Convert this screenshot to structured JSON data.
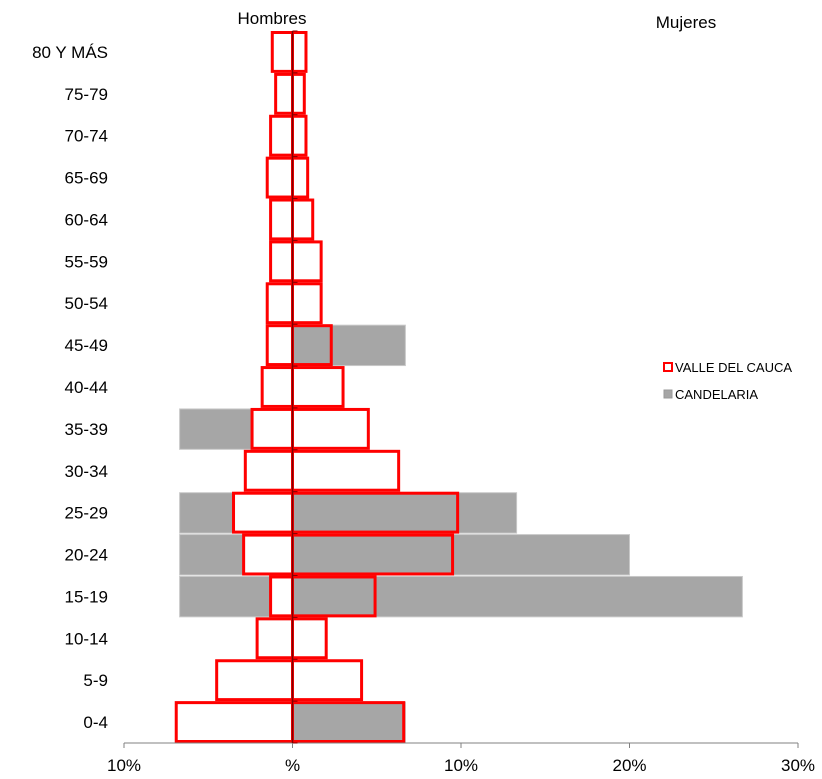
{
  "chart_data": {
    "type": "bar",
    "orientation": "horizontal",
    "subtype": "population-pyramid",
    "header_left": "Hombres",
    "header_right": "Mujeres",
    "categories": [
      "0-4",
      "5-9",
      "10-14",
      "15-19",
      "20-24",
      "25-29",
      "30-34",
      "35-39",
      "40-44",
      "45-49",
      "50-54",
      "55-59",
      "60-64",
      "65-69",
      "70-74",
      "75-79",
      "80 Y MÁS"
    ],
    "x_tick_labels": [
      {
        "value": -10,
        "label": "10%",
        "color": "#ff0000"
      },
      {
        "value": 0,
        "label": "%",
        "color": "#000000"
      },
      {
        "value": 10,
        "label": "10%",
        "color": "#000000"
      },
      {
        "value": 20,
        "label": "20%",
        "color": "#000000"
      },
      {
        "value": 30,
        "label": "30%",
        "color": "#000000"
      }
    ],
    "xlim": [
      -10,
      30
    ],
    "grid": false,
    "legend_position": "right",
    "series": [
      {
        "name": "CANDELARIA",
        "style": "filled",
        "color": "#a6a6a6",
        "hombres": [
          0,
          0,
          0,
          -6.7,
          -6.7,
          -6.7,
          0,
          -6.7,
          0,
          0,
          0,
          0,
          0,
          0,
          0,
          0,
          0
        ],
        "mujeres": [
          6.7,
          0,
          0,
          26.7,
          20.0,
          13.3,
          0,
          0,
          0,
          6.7,
          0,
          0,
          0,
          0,
          0,
          0,
          0
        ]
      },
      {
        "name": "VALLE DEL CAUCA",
        "style": "outline",
        "color": "#ff0000",
        "hombres": [
          -6.9,
          -4.5,
          -2.1,
          -1.3,
          -2.9,
          -3.5,
          -2.8,
          -2.4,
          -1.8,
          -1.5,
          -1.5,
          -1.3,
          -1.3,
          -1.5,
          -1.3,
          -1.0,
          -1.2
        ],
        "mujeres": [
          6.6,
          4.1,
          2.0,
          4.9,
          9.5,
          9.8,
          6.3,
          4.5,
          3.0,
          2.3,
          1.7,
          1.7,
          1.2,
          0.9,
          0.8,
          0.7,
          0.8
        ]
      }
    ]
  }
}
